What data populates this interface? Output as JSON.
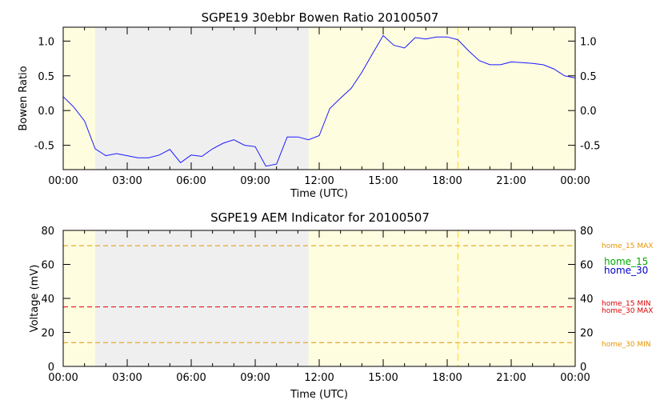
{
  "chart_data": [
    {
      "type": "line",
      "title": "SGPE19 30ebbr Bowen Ratio 20100507",
      "xlabel": "Time (UTC)",
      "ylabel": "Bowen Ratio",
      "xlim": [
        0,
        24
      ],
      "ylim": [
        -0.85,
        1.2
      ],
      "x_ticks": [
        "00:00",
        "03:00",
        "06:00",
        "09:00",
        "12:00",
        "15:00",
        "18:00",
        "21:00",
        "00:00"
      ],
      "y_ticks": [
        "1.0",
        "0.5",
        "0.0",
        "-0.5"
      ],
      "y_tick_values": [
        1.0,
        0.5,
        0.0,
        -0.5
      ],
      "night_shading": [
        [
          1.5,
          11.5
        ]
      ],
      "marker_line_x": 18.5,
      "series": [
        {
          "color": "#1a1aff",
          "x": [
            0.0,
            0.5,
            1.0,
            1.5,
            2.0,
            2.5,
            3.0,
            3.5,
            4.0,
            4.5,
            5.0,
            5.5,
            6.0,
            6.5,
            7.0,
            7.5,
            8.0,
            8.5,
            9.0,
            9.5,
            10.0,
            10.5,
            11.0,
            11.5,
            12.0,
            12.5,
            13.0,
            13.5,
            14.0,
            14.5,
            15.0,
            15.5,
            16.0,
            16.5,
            17.0,
            17.5,
            18.0,
            18.5,
            19.0,
            19.5,
            20.0,
            20.5,
            21.0,
            21.5,
            22.0,
            22.5,
            23.0,
            23.5,
            24.0
          ],
          "values": [
            0.2,
            0.05,
            -0.15,
            -0.55,
            -0.65,
            -0.62,
            -0.65,
            -0.68,
            -0.68,
            -0.64,
            -0.56,
            -0.75,
            -0.64,
            -0.66,
            -0.55,
            -0.47,
            -0.42,
            -0.5,
            -0.52,
            -0.8,
            -0.77,
            -0.38,
            -0.38,
            -0.42,
            -0.36,
            0.03,
            0.18,
            0.32,
            0.55,
            0.82,
            1.08,
            0.94,
            0.9,
            1.05,
            1.03,
            1.06,
            1.06,
            1.02,
            0.86,
            0.72,
            0.66,
            0.66,
            0.7,
            0.69,
            0.68,
            0.66,
            0.6,
            0.5,
            0.47
          ]
        }
      ]
    },
    {
      "type": "line",
      "title": "SGPE19 AEM Indicator for 20100507",
      "xlabel": "Time (UTC)",
      "ylabel": "Voltage (mV)",
      "xlim": [
        0,
        24
      ],
      "ylim": [
        0,
        80
      ],
      "x_ticks": [
        "00:00",
        "03:00",
        "06:00",
        "09:00",
        "12:00",
        "15:00",
        "18:00",
        "21:00",
        "00:00"
      ],
      "y_ticks": [
        "80",
        "60",
        "40",
        "20",
        "0"
      ],
      "y_tick_values": [
        80,
        60,
        40,
        20,
        0
      ],
      "night_shading": [
        [
          1.5,
          11.5
        ]
      ],
      "marker_line_x": 18.5,
      "thresholds": [
        {
          "value": 71,
          "color": "#e69500",
          "dashed": true
        },
        {
          "value": 35,
          "color": "#dd0000",
          "dashed": true
        },
        {
          "value": 14,
          "color": "#e69500",
          "dashed": true
        }
      ],
      "right_labels": [
        {
          "text": "home_15 MAX",
          "color": "#e69500"
        },
        {
          "text": "home_15",
          "color": "#00aa00"
        },
        {
          "text": "home_30",
          "color": "#0000cc"
        },
        {
          "text": "home_15 MIN",
          "color": "#dd0000"
        },
        {
          "text": "home_30 MAX",
          "color": "#dd0000"
        },
        {
          "text": "home_30 MIN",
          "color": "#e69500"
        }
      ]
    }
  ],
  "colors": {
    "day_fill": "#fffde0",
    "night_fill": "#efefef",
    "marker_line": "#ffd700",
    "axis": "#000000"
  }
}
